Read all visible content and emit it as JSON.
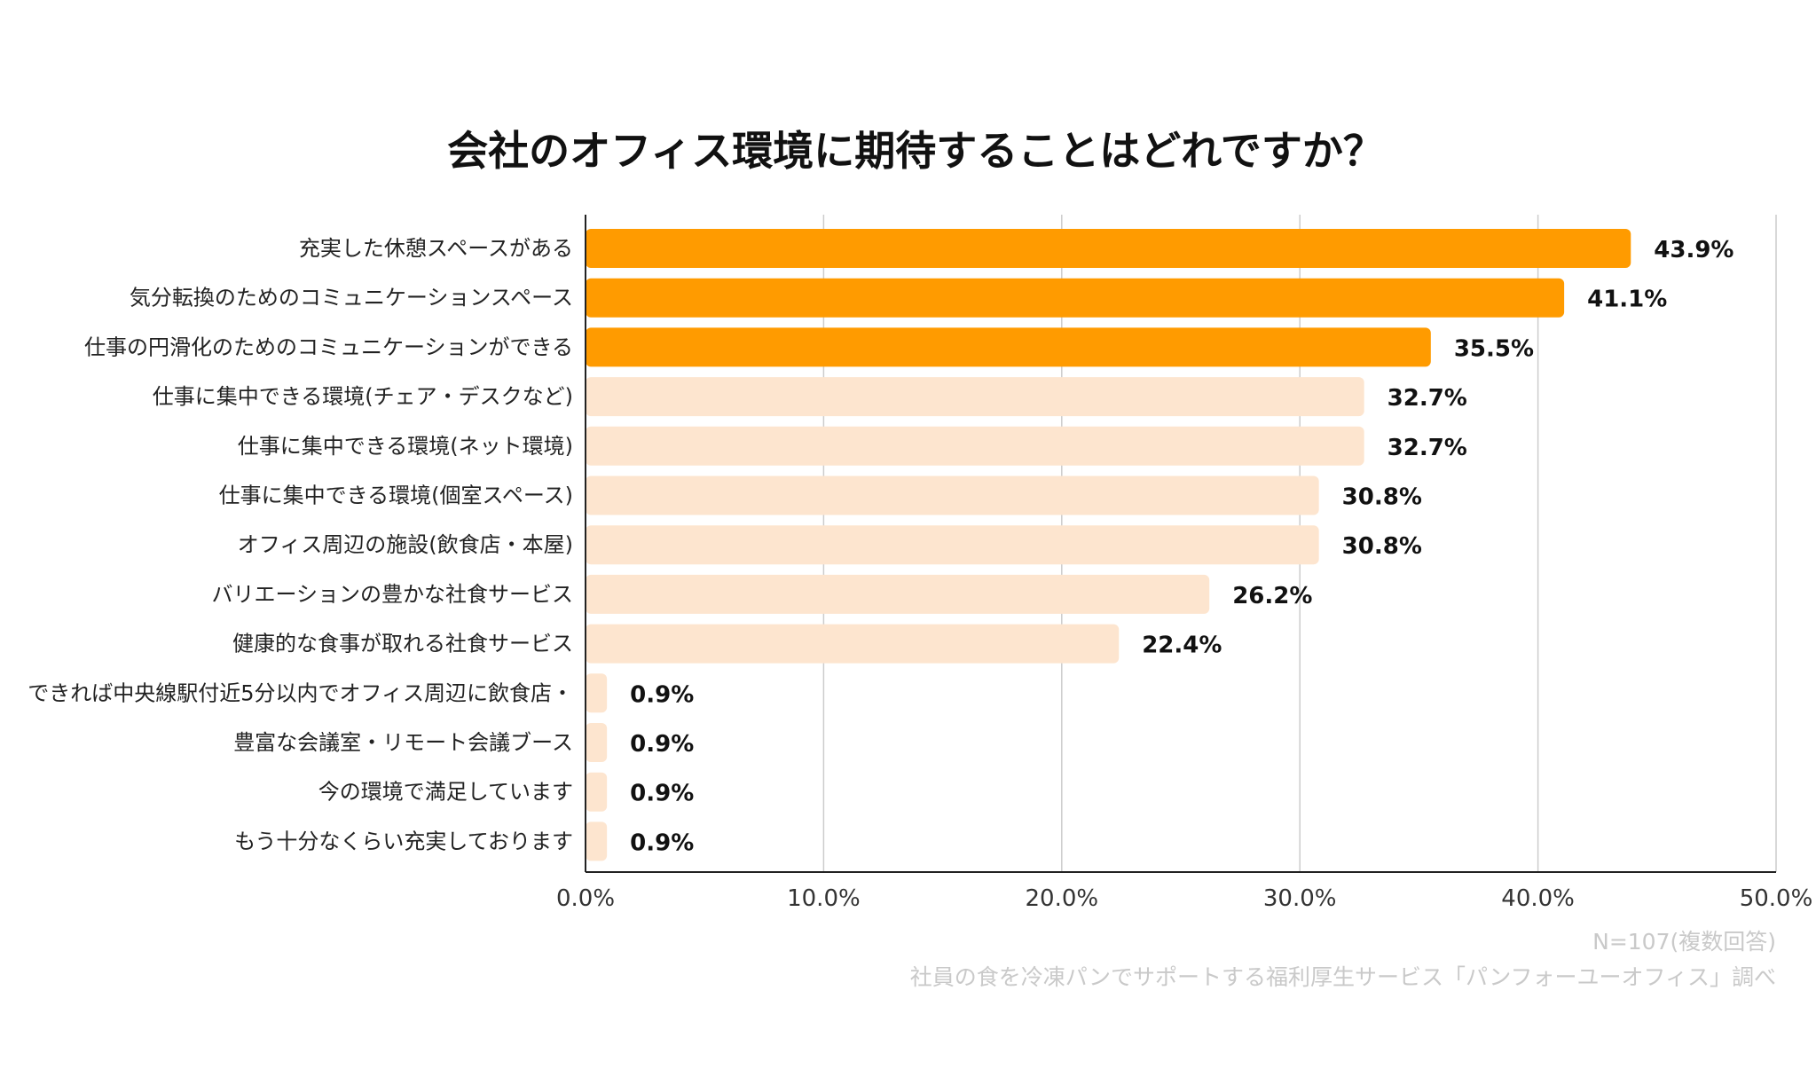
{
  "chart_data": {
    "type": "bar",
    "orientation": "horizontal",
    "title": "会社のオフィス環境に期待することはどれですか？",
    "categories": [
      "充実した休憩スペースがある",
      "気分転換のためのコミュニケーションスペース",
      "仕事の円滑化のためのコミュニケーションができる",
      "仕事に集中できる環境(チェア・デスクなど)",
      "仕事に集中できる環境(ネット環境)",
      "仕事に集中できる環境(個室スペース)",
      "オフィス周辺の施設(飲食店・本屋)",
      "バリエーションの豊かな社食サービス",
      "健康的な食事が取れる社食サービス",
      "できれば中央線駅付近5分以内でオフィス周辺に飲食店・",
      "豊富な会議室・リモート会議ブース",
      "今の環境で満足しています",
      "もう十分なくらい充実しております"
    ],
    "values": [
      43.9,
      41.1,
      35.5,
      32.7,
      32.7,
      30.8,
      30.8,
      26.2,
      22.4,
      0.9,
      0.9,
      0.9,
      0.9
    ],
    "value_labels": [
      "43.9%",
      "41.1%",
      "35.5%",
      "32.7%",
      "32.7%",
      "30.8%",
      "30.8%",
      "26.2%",
      "22.4%",
      "0.9%",
      "0.9%",
      "0.9%",
      "0.9%"
    ],
    "highlight_top": 3,
    "xlim": [
      0,
      50
    ],
    "xticks": [
      0,
      10,
      20,
      30,
      40,
      50
    ],
    "xtick_labels": [
      "0.0%",
      "10.0%",
      "20.0%",
      "30.0%",
      "40.0%",
      "50.0%"
    ],
    "grid": true,
    "xlabel": "",
    "ylabel": ""
  },
  "notes": {
    "sample": "N=107(複数回答)",
    "source": "社員の食を冷凍パンでサポートする福利厚生サービス「パンフォーユーオフィス」調べ"
  },
  "colors": {
    "highlight": "#FF9B00",
    "normal": "#FDE5CF",
    "grid": "#CCCCCC",
    "axis": "#222222",
    "note": "#C9C9C9"
  }
}
